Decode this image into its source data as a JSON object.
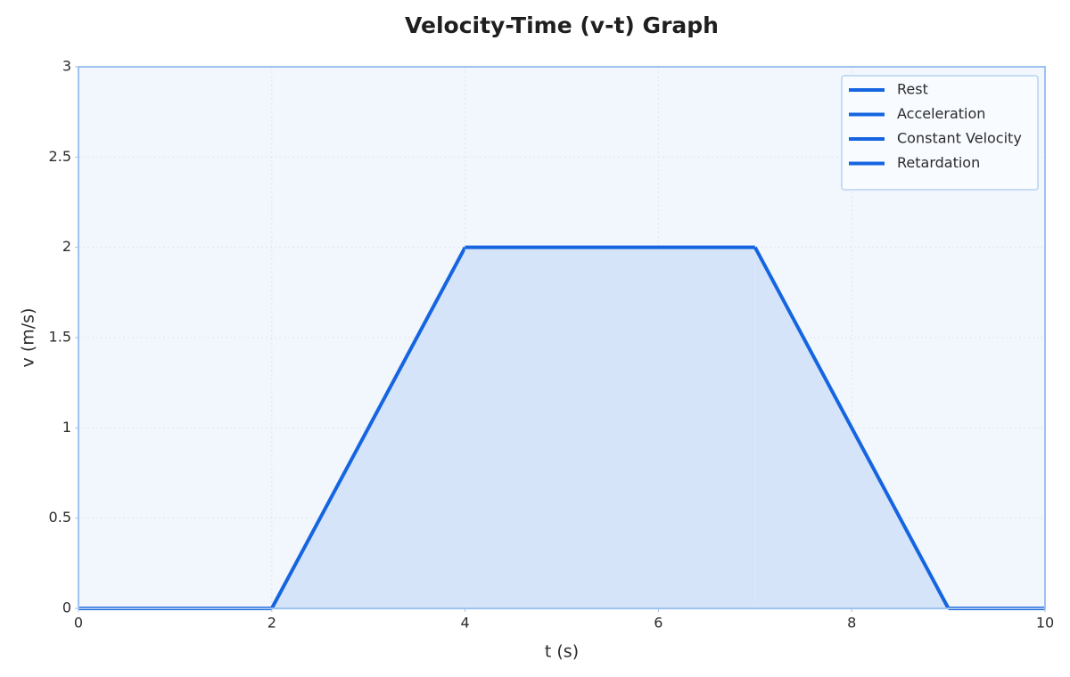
{
  "chart_data": {
    "type": "line",
    "title": "Velocity-Time (v-t) Graph",
    "x_label": "t (s)",
    "y_label": "v (m/s)",
    "series": [
      {
        "name": "Rest",
        "color": "#1565e0",
        "x": [
          0,
          2,
          null,
          9,
          10
        ],
        "values": [
          0,
          0,
          null,
          0,
          0
        ]
      },
      {
        "name": "Acceleration",
        "color": "#1565e0",
        "x": [
          2,
          4
        ],
        "values": [
          0,
          2
        ]
      },
      {
        "name": "Constant Velocity",
        "color": "#1565e0",
        "x": [
          4,
          7
        ],
        "values": [
          2,
          2
        ]
      },
      {
        "name": "Retardation",
        "color": "#1565e0",
        "x": [
          7,
          9
        ],
        "values": [
          2,
          0
        ]
      }
    ],
    "fill_color": "#d6e4fa",
    "xlim": [
      0,
      10
    ],
    "xticks": [
      0,
      2,
      4,
      6,
      8,
      10
    ],
    "ylim": [
      0,
      3
    ],
    "yticks": [
      0,
      0.5,
      1,
      1.5,
      2,
      2.5,
      3
    ],
    "grid": true,
    "legend": "upper-right"
  }
}
